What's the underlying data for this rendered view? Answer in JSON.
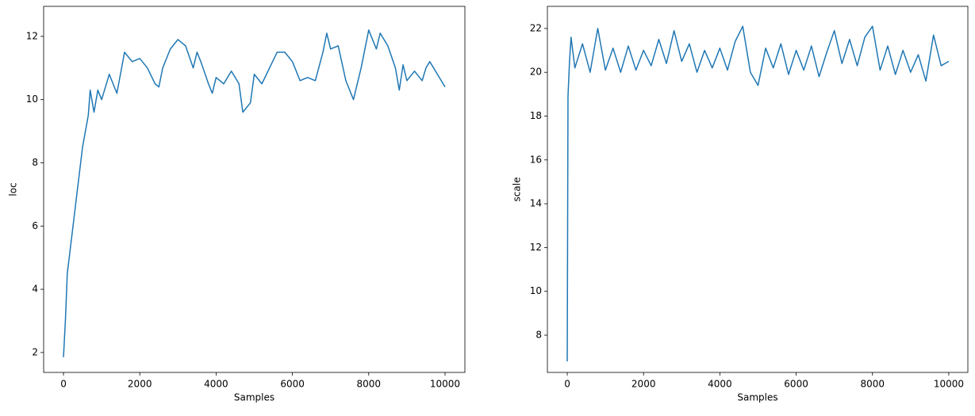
{
  "chart_data": [
    {
      "type": "line",
      "xlabel": "Samples",
      "ylabel": "loc",
      "color": "#1f77b4",
      "xlim": [
        -520,
        10520
      ],
      "ylim": [
        1.37,
        12.95
      ],
      "xticks": [
        0,
        2000,
        4000,
        6000,
        8000,
        10000
      ],
      "yticks": [
        2,
        4,
        6,
        8,
        10,
        12
      ],
      "x": [
        0,
        50,
        100,
        150,
        250,
        400,
        500,
        650,
        700,
        800,
        900,
        1000,
        1200,
        1400,
        1600,
        1800,
        2000,
        2200,
        2400,
        2500,
        2600,
        2800,
        3000,
        3200,
        3400,
        3500,
        3600,
        3800,
        3900,
        4000,
        4200,
        4400,
        4600,
        4700,
        4900,
        5000,
        5200,
        5400,
        5600,
        5800,
        6000,
        6200,
        6400,
        6600,
        6800,
        6900,
        7000,
        7200,
        7400,
        7600,
        7800,
        8000,
        8200,
        8300,
        8500,
        8700,
        8800,
        8900,
        9000,
        9200,
        9400,
        9500,
        9600,
        9800,
        10000
      ],
      "values": [
        1.85,
        3,
        4.5,
        5,
        6,
        7.5,
        8.5,
        9.5,
        10.3,
        9.6,
        10.3,
        10.0,
        10.8,
        10.2,
        11.5,
        11.2,
        11.3,
        11.0,
        10.5,
        10.4,
        11.0,
        11.6,
        11.9,
        11.7,
        11.0,
        11.5,
        11.2,
        10.5,
        10.2,
        10.7,
        10.5,
        10.9,
        10.5,
        9.6,
        9.9,
        10.8,
        10.5,
        11.0,
        11.5,
        11.5,
        11.2,
        10.6,
        10.7,
        10.6,
        11.5,
        12.1,
        11.6,
        11.7,
        10.6,
        10.0,
        11.0,
        12.2,
        11.6,
        12.1,
        11.7,
        11.0,
        10.3,
        11.1,
        10.6,
        10.9,
        10.6,
        11.0,
        11.2,
        10.8,
        10.4
      ]
    },
    {
      "type": "line",
      "xlabel": "Samples",
      "ylabel": "scale",
      "color": "#1f77b4",
      "xlim": [
        -520,
        10500
      ],
      "ylim": [
        6.3,
        23.01
      ],
      "xticks": [
        0,
        2000,
        4000,
        6000,
        8000,
        10000
      ],
      "yticks": [
        8,
        10,
        12,
        14,
        16,
        18,
        20,
        22
      ],
      "x": [
        0,
        20,
        60,
        100,
        200,
        400,
        600,
        800,
        1000,
        1200,
        1400,
        1600,
        1800,
        2000,
        2200,
        2400,
        2600,
        2800,
        3000,
        3200,
        3400,
        3600,
        3800,
        4000,
        4200,
        4400,
        4600,
        4800,
        5000,
        5200,
        5400,
        5600,
        5800,
        6000,
        6200,
        6400,
        6600,
        6800,
        7000,
        7200,
        7400,
        7600,
        7800,
        8000,
        8200,
        8400,
        8600,
        8800,
        9000,
        9200,
        9400,
        9600,
        9800,
        10000
      ],
      "values": [
        6.8,
        18.9,
        20.5,
        21.6,
        20.2,
        21.3,
        20.0,
        22.0,
        20.1,
        21.1,
        20.0,
        21.2,
        20.1,
        21.0,
        20.3,
        21.5,
        20.4,
        21.9,
        20.5,
        21.3,
        20.0,
        21.0,
        20.2,
        21.1,
        20.1,
        21.4,
        22.1,
        20.0,
        19.4,
        21.1,
        20.2,
        21.3,
        19.9,
        21.0,
        20.1,
        21.2,
        19.8,
        20.9,
        21.9,
        20.4,
        21.5,
        20.3,
        21.6,
        22.1,
        20.1,
        21.2,
        19.9,
        21.0,
        20.0,
        20.8,
        19.6,
        21.7,
        20.3,
        20.5
      ]
    }
  ]
}
